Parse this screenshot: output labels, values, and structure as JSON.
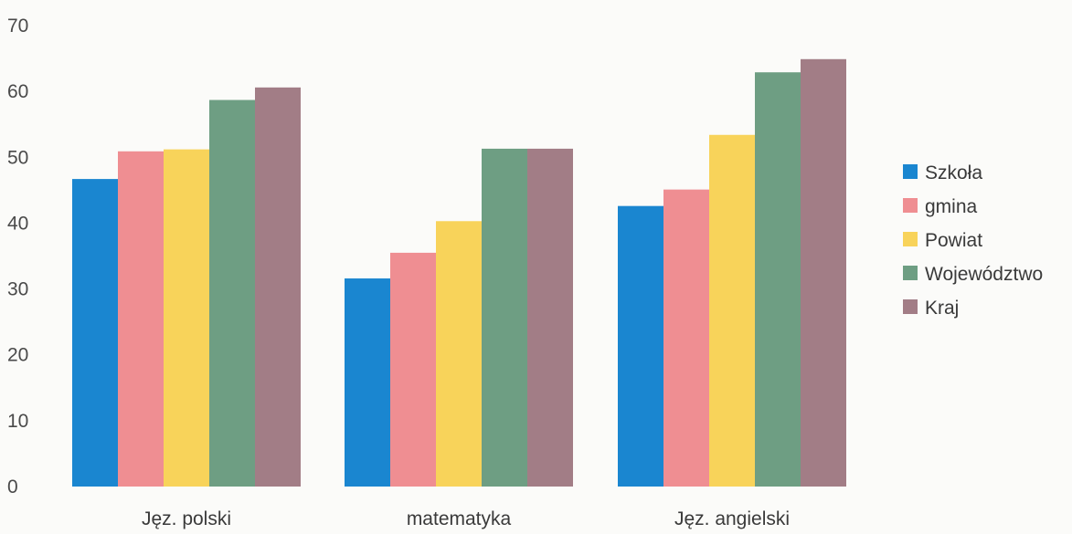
{
  "chart_data": {
    "type": "bar",
    "categories": [
      "Jęz. polski",
      "matematyka",
      "Jęz. angielski"
    ],
    "series": [
      {
        "name": "Szkoła",
        "values": [
          46.7,
          31.6,
          42.6
        ],
        "color": "#1a86d0"
      },
      {
        "name": "gmina",
        "values": [
          50.9,
          35.5,
          45.1
        ],
        "color": "#ef8e92"
      },
      {
        "name": "Powiat",
        "values": [
          51.2,
          40.3,
          53.4
        ],
        "color": "#f8d35a"
      },
      {
        "name": "Województwo",
        "values": [
          58.7,
          51.3,
          62.9
        ],
        "color": "#6e9e83"
      },
      {
        "name": "Kraj",
        "values": [
          60.6,
          51.3,
          64.9
        ],
        "color": "#a27d86"
      }
    ],
    "y_ticks": [
      0,
      10,
      20,
      30,
      40,
      50,
      60,
      70
    ],
    "ylim": [
      0,
      70
    ],
    "grid": false,
    "legend_position": "right"
  }
}
